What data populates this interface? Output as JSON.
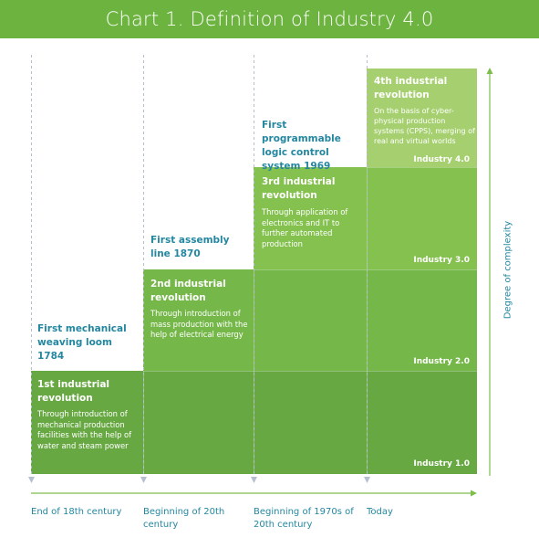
{
  "header": {
    "title": "Chart 1. Definition of Industry 4.0"
  },
  "colors": {
    "header_bg": "#6db33f",
    "block1": "#68a843",
    "block2": "#76b74a",
    "block3": "#84c14f",
    "block4": "#a6d06f",
    "label_text": "#2487a0",
    "arrow": "#7dbe4a",
    "dashed_guide": "#b5bfd0"
  },
  "stages": [
    {
      "title": "1st industrial revolution",
      "description": "Through introduction of mechanical production facilities with the help of water and steam power",
      "industry_label": "Industry 1.0",
      "milestone": "First mechanical weaving loom 1784",
      "period": "End of 18th century"
    },
    {
      "title": "2nd industrial revolution",
      "description": "Through introduction of mass production with the help of electrical energy",
      "industry_label": "Industry 2.0",
      "milestone": "First assembly line 1870",
      "period": "Beginning of 20th century"
    },
    {
      "title": "3rd industrial revolution",
      "description": "Through application of electronics and IT to further automated production",
      "industry_label": "Industry 3.0",
      "milestone": "First programmable logic control system 1969",
      "period": "Beginning of 1970s of 20th century"
    },
    {
      "title": "4th industrial revolution",
      "description": "On the basis of cyber-physical production systems (CPPS), merging of real and virtual worlds",
      "industry_label": "Industry 4.0",
      "milestone": "",
      "period": "Today"
    }
  ],
  "y_axis_label": "Degree of complexity"
}
